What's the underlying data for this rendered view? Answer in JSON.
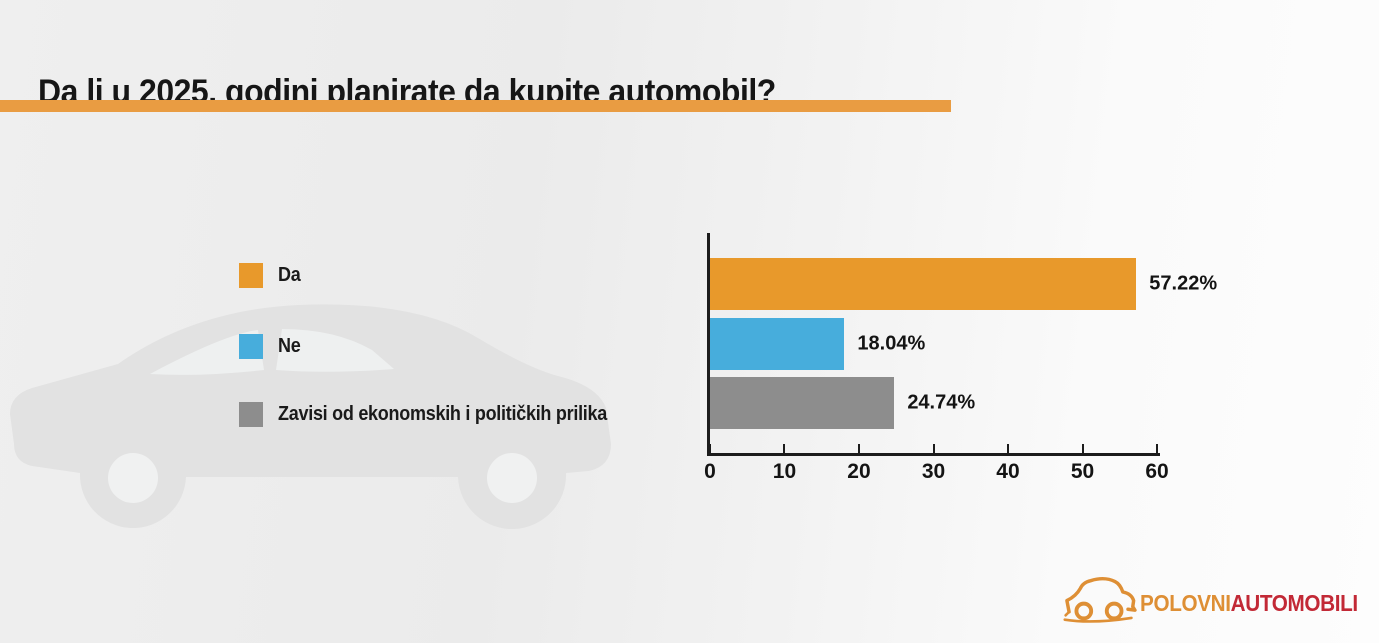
{
  "title": {
    "text": "Da li u 2025. godini planirate da kupite automobil?"
  },
  "accent_rule_color": "#E99C42",
  "legend": {
    "items": [
      {
        "label": "Da",
        "color": "#E8992B"
      },
      {
        "label": "Ne",
        "color": "#47ADDC"
      },
      {
        "label": "Zavisi od ekonomskih i političkih prilika",
        "color": "#8D8D8D"
      }
    ]
  },
  "chart_data": {
    "type": "bar",
    "orientation": "horizontal",
    "title": "",
    "categories": [
      "Da",
      "Ne",
      "Zavisi od ekonomskih i političkih prilika"
    ],
    "values": [
      57.22,
      18.04,
      24.74
    ],
    "value_labels": [
      "57.22%",
      "18.04%",
      "24.74%"
    ],
    "colors": [
      "#E8992B",
      "#47ADDC",
      "#8D8D8D"
    ],
    "x_ticks": [
      0,
      10,
      20,
      30,
      40,
      50,
      60
    ],
    "xlim": [
      0,
      60
    ],
    "grid": false,
    "legend_position": "left",
    "axis_color": "#1c1c1c"
  },
  "logo": {
    "brand_primary": "POLOVNI",
    "brand_secondary": "AUTOMOBILI",
    "primary_color": "#DE8F35",
    "secondary_color": "#C22936",
    "icon": "car-sketch-icon"
  },
  "watermark": {
    "icon": "car-silhouette",
    "color": "#e2e2e2"
  }
}
